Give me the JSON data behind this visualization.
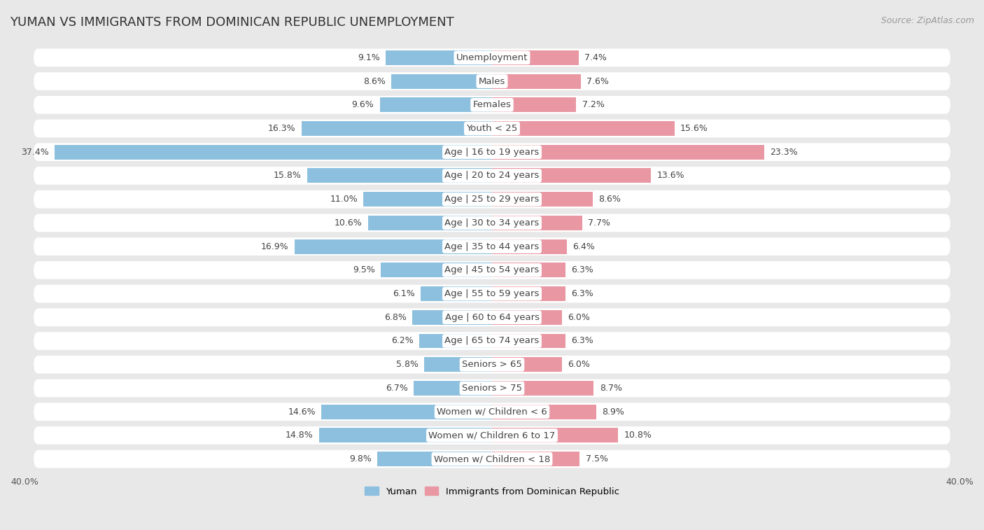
{
  "title": "YUMAN VS IMMIGRANTS FROM DOMINICAN REPUBLIC UNEMPLOYMENT",
  "source": "Source: ZipAtlas.com",
  "categories": [
    "Unemployment",
    "Males",
    "Females",
    "Youth < 25",
    "Age | 16 to 19 years",
    "Age | 20 to 24 years",
    "Age | 25 to 29 years",
    "Age | 30 to 34 years",
    "Age | 35 to 44 years",
    "Age | 45 to 54 years",
    "Age | 55 to 59 years",
    "Age | 60 to 64 years",
    "Age | 65 to 74 years",
    "Seniors > 65",
    "Seniors > 75",
    "Women w/ Children < 6",
    "Women w/ Children 6 to 17",
    "Women w/ Children < 18"
  ],
  "left_values": [
    9.1,
    8.6,
    9.6,
    16.3,
    37.4,
    15.8,
    11.0,
    10.6,
    16.9,
    9.5,
    6.1,
    6.8,
    6.2,
    5.8,
    6.7,
    14.6,
    14.8,
    9.8
  ],
  "right_values": [
    7.4,
    7.6,
    7.2,
    15.6,
    23.3,
    13.6,
    8.6,
    7.7,
    6.4,
    6.3,
    6.3,
    6.0,
    6.3,
    6.0,
    8.7,
    8.9,
    10.8,
    7.5
  ],
  "left_color": "#8dc0de",
  "right_color": "#e897a3",
  "left_label": "Yuman",
  "right_label": "Immigrants from Dominican Republic",
  "x_max": 40.0,
  "page_bg_color": "#e8e8e8",
  "row_bg_color": "#ffffff",
  "row_separator_color": "#d0d0d0",
  "title_fontsize": 13,
  "label_fontsize": 9.5,
  "value_fontsize": 9,
  "axis_fontsize": 9,
  "source_fontsize": 9
}
